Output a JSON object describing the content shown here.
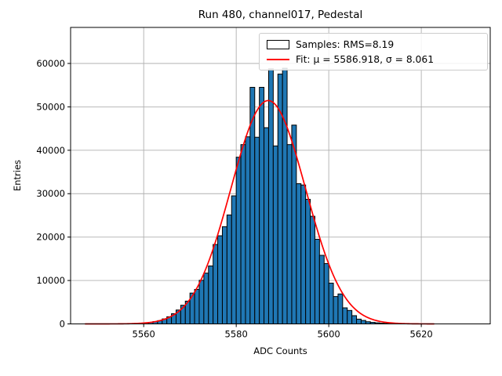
{
  "chart_data": {
    "type": "bar",
    "subtype": "histogram",
    "title": "Run 480, channel017, Pedestal",
    "xlabel": "ADC Counts",
    "ylabel": "Entries",
    "xlim": [
      5544.2,
      5634.9
    ],
    "ylim": [
      0,
      68300
    ],
    "xticks": [
      5560,
      5580,
      5600,
      5620
    ],
    "yticks": [
      0,
      10000,
      20000,
      30000,
      40000,
      50000,
      60000
    ],
    "grid": true,
    "bin_start": 5561,
    "bin_width": 1,
    "values": [
      350,
      550,
      750,
      1150,
      1650,
      2350,
      3200,
      4300,
      5250,
      7100,
      7950,
      10050,
      11700,
      13350,
      18300,
      20300,
      22400,
      25100,
      29500,
      38400,
      41300,
      43100,
      54500,
      43000,
      54500,
      45200,
      58750,
      41000,
      57550,
      58900,
      41300,
      45800,
      32300,
      32000,
      28700,
      24800,
      19500,
      15800,
      13900,
      9400,
      6300,
      6900,
      3700,
      3100,
      1900,
      1100,
      800,
      500,
      350,
      250,
      150,
      100
    ],
    "fit": {
      "mu": 5586.918,
      "sigma": 8.061,
      "amplitude": 51450,
      "x_start": 5547.3,
      "x_end": 5623.0
    },
    "legend": {
      "position": "upper right",
      "entries": [
        {
          "type": "patch",
          "label": "Samples: RMS=8.19",
          "color": "#1f77b4",
          "edge": "#000000"
        },
        {
          "type": "line",
          "label": "Fit: μ = 5586.918, σ = 8.061",
          "color": "#ff0000"
        }
      ]
    },
    "colors": {
      "bar_fill": "#1f77b4",
      "bar_edge": "#000000",
      "fit_line": "#ff0000",
      "grid": "#b0b0b0",
      "axes": "#000000",
      "background": "#ffffff"
    }
  }
}
